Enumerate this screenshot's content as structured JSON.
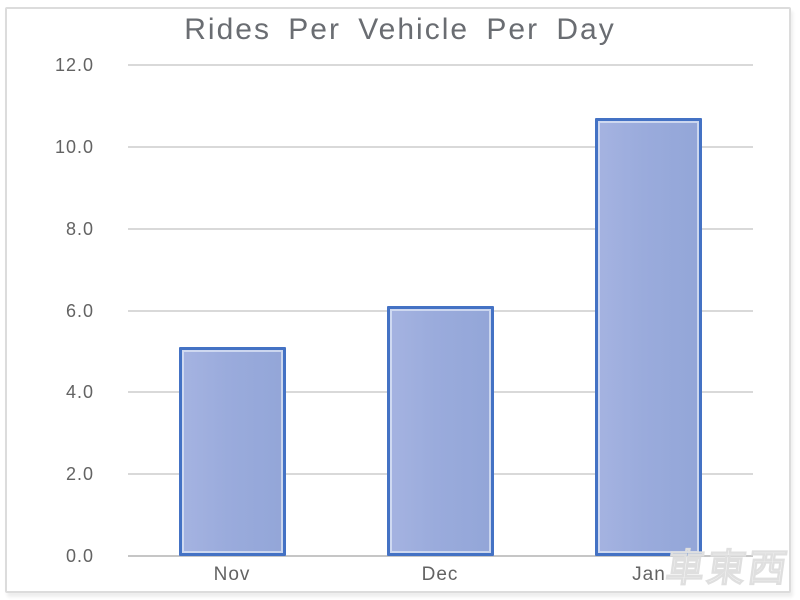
{
  "window": {
    "background_color": "#ffffff",
    "frame_border_color": "#dcdcdc"
  },
  "watermark": {
    "text": "車東西"
  },
  "chart_data": {
    "type": "bar",
    "title": "Rides Per Vehicle Per Day",
    "categories": [
      "Nov",
      "Dec",
      "Jan"
    ],
    "values": [
      5.1,
      6.1,
      10.7
    ],
    "xlabel": "",
    "ylabel": "",
    "ylim": [
      0,
      12
    ],
    "ytick_step": 2,
    "ytick_labels": [
      "0.0",
      "2.0",
      "4.0",
      "6.0",
      "8.0",
      "10.0",
      "12.0"
    ],
    "grid": true,
    "legend": false,
    "colors": {
      "bar_fill": "#9aabdc",
      "bar_border": "#4472c4",
      "gridline": "#d9d9d9",
      "axis_line": "#c6c6c6",
      "tick_text": "#636363",
      "title_text": "#6a6d72"
    }
  }
}
